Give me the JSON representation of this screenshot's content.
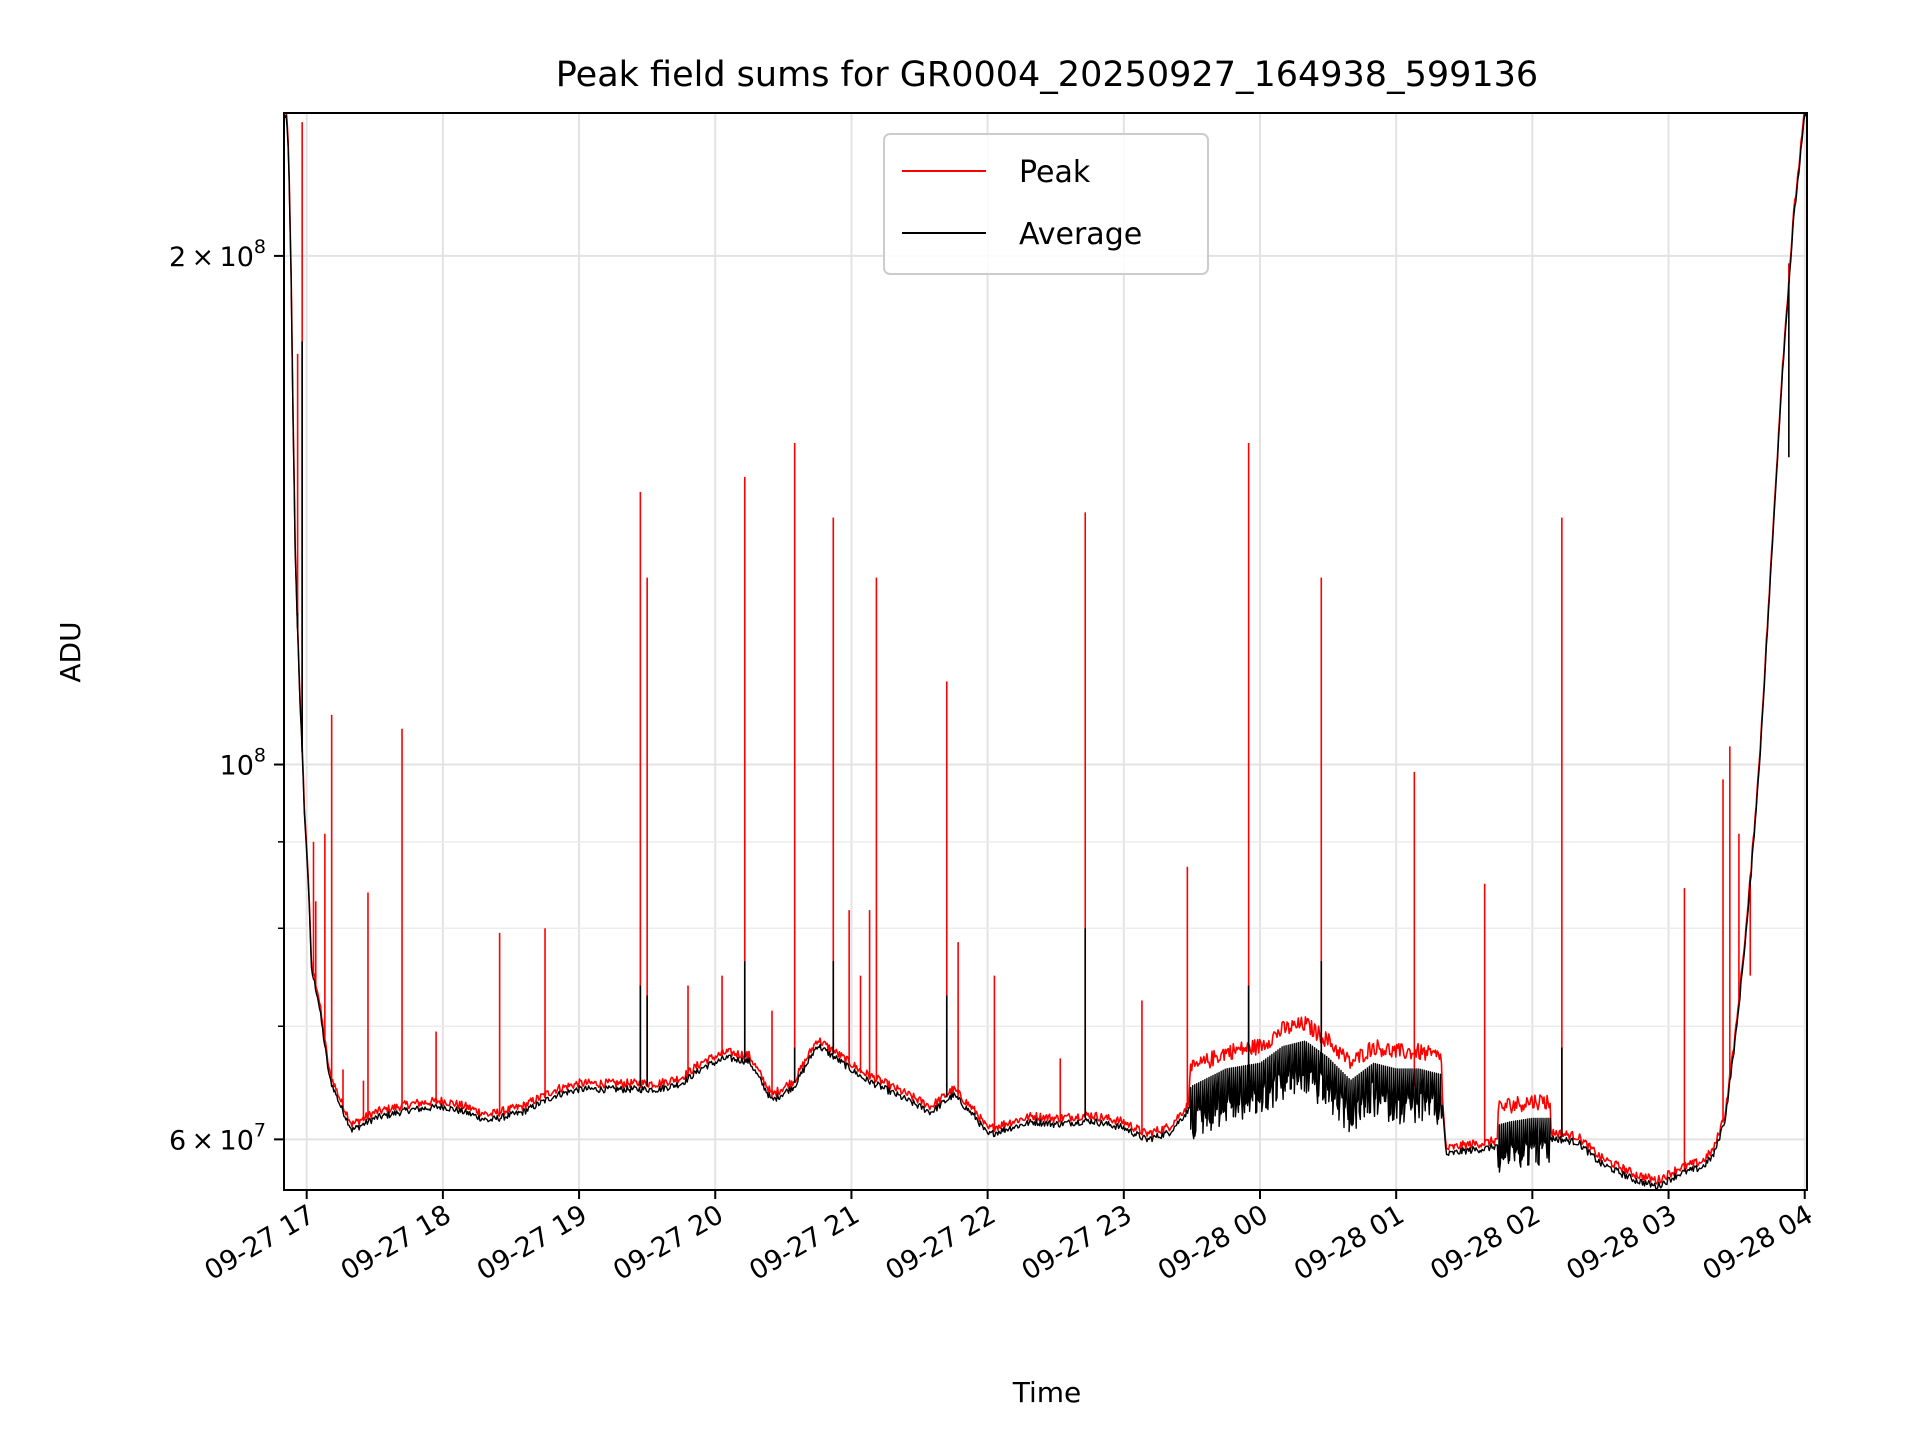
{
  "chart_data": {
    "type": "line",
    "title": "Peak field sums for GR0004_20250927_164938_599136",
    "xlabel": "Time",
    "ylabel": "ADU",
    "yscale": "log",
    "ylim": [
      56000000,
      243000000
    ],
    "xlim": [
      "2025-09-27 16:50",
      "2025-09-28 04:01"
    ],
    "grid": true,
    "legend_position": "top-center",
    "x_ticks": [
      "09-27 17",
      "09-27 18",
      "09-27 19",
      "09-27 20",
      "09-27 21",
      "09-27 22",
      "09-27 23",
      "09-28 00",
      "09-28 01",
      "09-28 02",
      "09-28 03",
      "09-28 04"
    ],
    "y_tick_labels": [
      {
        "value": 60000000,
        "mantissa": "6",
        "exponent": "7"
      },
      {
        "value": 100000000,
        "mantissa": "",
        "exponent": "8"
      },
      {
        "value": 200000000,
        "mantissa": "2",
        "exponent": "8"
      }
    ],
    "y_minor_ticks": [
      70000000,
      80000000,
      90000000
    ],
    "baseline_points": [
      [
        "2025-09-27 16:51",
        243000000
      ],
      [
        "2025-09-27 16:52",
        230000000
      ],
      [
        "2025-09-27 16:53",
        200000000
      ],
      [
        "2025-09-27 16:54",
        160000000
      ],
      [
        "2025-09-27 16:55",
        132000000
      ],
      [
        "2025-09-27 16:57",
        110000000
      ],
      [
        "2025-09-27 16:59",
        94000000
      ],
      [
        "2025-09-27 17:01",
        84000000
      ],
      [
        "2025-09-27 17:02",
        76000000
      ],
      [
        "2025-09-27 17:05",
        73000000
      ],
      [
        "2025-09-27 17:10",
        65500000
      ],
      [
        "2025-09-27 17:15",
        63000000
      ],
      [
        "2025-09-27 17:20",
        61000000
      ],
      [
        "2025-09-27 17:30",
        62000000
      ],
      [
        "2025-09-27 17:45",
        62700000
      ],
      [
        "2025-09-27 18:00",
        63000000
      ],
      [
        "2025-09-27 18:10",
        62500000
      ],
      [
        "2025-09-27 18:20",
        61800000
      ],
      [
        "2025-09-27 18:35",
        62500000
      ],
      [
        "2025-09-27 18:50",
        64000000
      ],
      [
        "2025-09-27 19:00",
        64500000
      ],
      [
        "2025-09-27 19:20",
        64500000
      ],
      [
        "2025-09-27 19:35",
        64500000
      ],
      [
        "2025-09-27 19:45",
        65000000
      ],
      [
        "2025-09-27 19:55",
        66500000
      ],
      [
        "2025-09-27 20:05",
        67300000
      ],
      [
        "2025-09-27 20:15",
        67000000
      ],
      [
        "2025-09-27 20:25",
        63500000
      ],
      [
        "2025-09-27 20:35",
        64800000
      ],
      [
        "2025-09-27 20:45",
        68500000
      ],
      [
        "2025-09-27 20:55",
        67000000
      ],
      [
        "2025-09-27 21:05",
        65500000
      ],
      [
        "2025-09-27 21:15",
        64500000
      ],
      [
        "2025-09-27 21:25",
        63500000
      ],
      [
        "2025-09-27 21:35",
        62500000
      ],
      [
        "2025-09-27 21:45",
        64000000
      ],
      [
        "2025-09-27 21:55",
        62000000
      ],
      [
        "2025-09-27 22:00",
        60600000
      ],
      [
        "2025-09-27 22:10",
        61200000
      ],
      [
        "2025-09-27 22:20",
        61700000
      ],
      [
        "2025-09-27 22:30",
        61500000
      ],
      [
        "2025-09-27 22:45",
        61800000
      ],
      [
        "2025-09-27 23:00",
        61200000
      ],
      [
        "2025-09-27 23:10",
        60200000
      ],
      [
        "2025-09-27 23:20",
        60800000
      ],
      [
        "2025-09-27 23:30",
        63000000
      ],
      [
        "2025-09-27 23:45",
        64500000
      ],
      [
        "2025-09-28 00:00",
        65000000
      ],
      [
        "2025-09-28 00:10",
        66500000
      ],
      [
        "2025-09-28 00:20",
        67000000
      ],
      [
        "2025-09-28 00:30",
        65500000
      ],
      [
        "2025-09-28 00:40",
        63500000
      ],
      [
        "2025-09-28 00:50",
        65000000
      ],
      [
        "2025-09-28 01:00",
        64500000
      ],
      [
        "2025-09-28 01:10",
        64500000
      ],
      [
        "2025-09-28 01:20",
        64000000
      ],
      [
        "2025-09-28 01:22",
        59000000
      ],
      [
        "2025-09-28 01:30",
        59300000
      ],
      [
        "2025-09-28 01:40",
        59500000
      ],
      [
        "2025-09-28 01:50",
        60000000
      ],
      [
        "2025-09-28 02:00",
        60300000
      ],
      [
        "2025-09-28 02:10",
        60300000
      ],
      [
        "2025-09-28 02:20",
        60000000
      ],
      [
        "2025-09-28 02:30",
        58300000
      ],
      [
        "2025-09-28 02:45",
        57000000
      ],
      [
        "2025-09-28 02:55",
        56500000
      ],
      [
        "2025-09-28 03:05",
        57500000
      ],
      [
        "2025-09-28 03:15",
        58000000
      ],
      [
        "2025-09-28 03:20",
        59000000
      ],
      [
        "2025-09-28 03:25",
        62000000
      ],
      [
        "2025-09-28 03:30",
        70000000
      ],
      [
        "2025-09-28 03:35",
        82000000
      ],
      [
        "2025-09-28 03:40",
        100000000
      ],
      [
        "2025-09-28 03:45",
        130000000
      ],
      [
        "2025-09-28 03:50",
        170000000
      ],
      [
        "2025-09-28 03:55",
        210000000
      ],
      [
        "2025-09-28 04:00",
        243000000
      ]
    ],
    "noisy_segments": [
      {
        "start": "2025-09-27 23:29",
        "end": "2025-09-28 01:20",
        "peak_excess": 0.06,
        "average_drop": 0.05
      },
      {
        "start": "2025-09-28 01:45",
        "end": "2025-09-28 02:08",
        "peak_excess": 0.06,
        "average_drop": 0.04
      }
    ],
    "series": [
      {
        "name": "Peak",
        "color": "#ff0000",
        "spikes": [
          [
            "2025-09-27 16:56",
            175000000
          ],
          [
            "2025-09-27 16:58",
            240000000
          ],
          [
            "2025-09-27 17:03",
            90000000
          ],
          [
            "2025-09-27 17:04",
            83000000
          ],
          [
            "2025-09-27 17:08",
            91000000
          ],
          [
            "2025-09-27 17:11",
            107000000
          ],
          [
            "2025-09-27 17:16",
            66000000
          ],
          [
            "2025-09-27 17:27",
            84000000
          ],
          [
            "2025-09-27 17:42",
            105000000
          ],
          [
            "2025-09-27 17:57",
            69500000
          ],
          [
            "2025-09-27 17:25",
            65000000
          ],
          [
            "2025-09-27 18:25",
            79500000
          ],
          [
            "2025-09-27 18:45",
            80000000
          ],
          [
            "2025-09-27 19:27",
            145000000
          ],
          [
            "2025-09-27 19:30",
            129000000
          ],
          [
            "2025-09-27 19:48",
            74000000
          ],
          [
            "2025-09-27 20:03",
            75000000
          ],
          [
            "2025-09-27 20:13",
            148000000
          ],
          [
            "2025-09-27 20:25",
            71500000
          ],
          [
            "2025-09-27 20:35",
            155000000
          ],
          [
            "2025-09-27 20:52",
            140000000
          ],
          [
            "2025-09-27 20:59",
            82000000
          ],
          [
            "2025-09-27 21:04",
            75000000
          ],
          [
            "2025-09-27 21:08",
            82000000
          ],
          [
            "2025-09-27 21:11",
            129000000
          ],
          [
            "2025-09-27 21:42",
            112000000
          ],
          [
            "2025-09-27 21:47",
            78500000
          ],
          [
            "2025-09-27 22:03",
            75000000
          ],
          [
            "2025-09-27 22:32",
            67000000
          ],
          [
            "2025-09-27 22:43",
            141000000
          ],
          [
            "2025-09-27 23:08",
            72500000
          ],
          [
            "2025-09-27 23:28",
            87000000
          ],
          [
            "2025-09-27 23:55",
            155000000
          ],
          [
            "2025-09-28 00:27",
            129000000
          ],
          [
            "2025-09-28 01:08",
            99000000
          ],
          [
            "2025-09-28 01:39",
            85000000
          ],
          [
            "2025-09-28 02:13",
            140000000
          ],
          [
            "2025-09-28 03:07",
            84500000
          ],
          [
            "2025-09-28 03:24",
            98000000
          ],
          [
            "2025-09-28 03:27",
            102500000
          ],
          [
            "2025-09-28 03:31",
            91000000
          ],
          [
            "2025-09-28 03:36",
            75000000
          ],
          [
            "2025-09-28 03:53",
            198000000
          ]
        ]
      },
      {
        "name": "Average",
        "color": "#000000",
        "spikes": [
          [
            "2025-09-27 16:56",
            123000000
          ],
          [
            "2025-09-27 16:58",
            178000000
          ],
          [
            "2025-09-27 19:27",
            74000000
          ],
          [
            "2025-09-27 19:30",
            73000000
          ],
          [
            "2025-09-27 20:13",
            76500000
          ],
          [
            "2025-09-27 20:35",
            68000000
          ],
          [
            "2025-09-27 20:52",
            76500000
          ],
          [
            "2025-09-27 21:42",
            73000000
          ],
          [
            "2025-09-27 22:43",
            80000000
          ],
          [
            "2025-09-27 23:55",
            74000000
          ],
          [
            "2025-09-28 00:27",
            76500000
          ],
          [
            "2025-09-28 02:13",
            68000000
          ],
          [
            "2025-09-28 03:53",
            152000000
          ]
        ]
      }
    ]
  }
}
